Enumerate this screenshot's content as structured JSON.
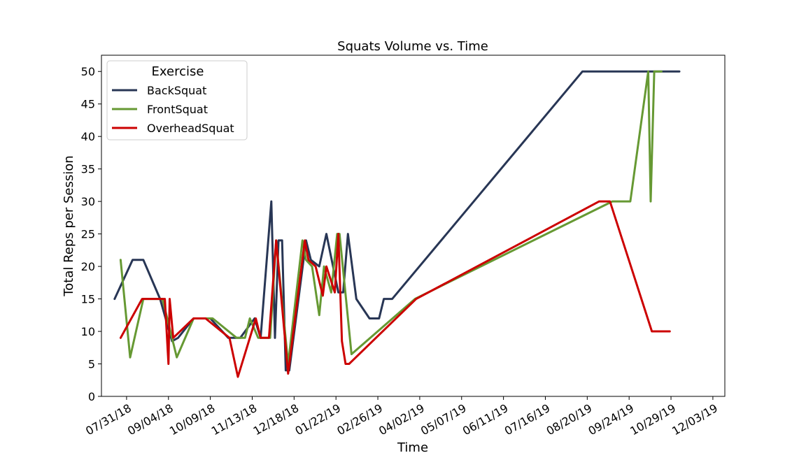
{
  "chart_data": {
    "type": "line",
    "title": "Squats Volume vs. Time",
    "xlabel": "Time",
    "ylabel": "Total Reps per Session",
    "x_tick_labels": [
      "07/31/18",
      "09/04/18",
      "10/09/18",
      "11/13/18",
      "12/18/18",
      "01/22/19",
      "02/26/19",
      "04/02/19",
      "05/07/19",
      "06/11/19",
      "07/16/19",
      "08/20/19",
      "09/24/19",
      "10/29/19",
      "12/03/19"
    ],
    "y_ticks": [
      0,
      5,
      10,
      15,
      20,
      25,
      30,
      35,
      40,
      45,
      50
    ],
    "xlim": [
      "2018-07-10",
      "2019-12-13"
    ],
    "ylim": [
      0,
      52.5
    ],
    "grid": false,
    "legend": {
      "title": "Exercise",
      "position": "top-left"
    },
    "series": [
      {
        "name": "BackSquat",
        "color": "#283655",
        "points": [
          [
            "2018-07-21",
            15
          ],
          [
            "2018-08-05",
            21
          ],
          [
            "2018-08-14",
            21
          ],
          [
            "2018-08-28",
            15
          ],
          [
            "2018-09-07",
            8.5
          ],
          [
            "2018-09-12",
            9
          ],
          [
            "2018-09-25",
            12
          ],
          [
            "2018-10-09",
            12
          ],
          [
            "2018-10-24",
            9
          ],
          [
            "2018-11-03",
            9
          ],
          [
            "2018-11-15",
            12
          ],
          [
            "2018-11-20",
            9
          ],
          [
            "2018-11-29",
            30
          ],
          [
            "2018-12-02",
            9
          ],
          [
            "2018-12-05",
            24
          ],
          [
            "2018-12-08",
            24
          ],
          [
            "2018-12-11",
            4
          ],
          [
            "2018-12-14",
            4
          ],
          [
            "2018-12-28",
            24
          ],
          [
            "2019-01-01",
            21
          ],
          [
            "2019-01-08",
            20
          ],
          [
            "2019-01-14",
            25
          ],
          [
            "2019-01-24",
            16
          ],
          [
            "2019-01-28",
            16
          ],
          [
            "2019-02-01",
            25
          ],
          [
            "2019-02-08",
            15
          ],
          [
            "2019-02-19",
            12
          ],
          [
            "2019-02-27",
            12
          ],
          [
            "2019-03-03",
            15
          ],
          [
            "2019-03-10",
            15
          ],
          [
            "2019-08-16",
            50
          ],
          [
            "2019-11-05",
            50
          ]
        ]
      },
      {
        "name": "FrontSquat",
        "color": "#669933",
        "points": [
          [
            "2018-07-26",
            21
          ],
          [
            "2018-08-03",
            6
          ],
          [
            "2018-08-14",
            15
          ],
          [
            "2018-08-30",
            15
          ],
          [
            "2018-09-11",
            6
          ],
          [
            "2018-09-25",
            12
          ],
          [
            "2018-10-11",
            12
          ],
          [
            "2018-10-31",
            9
          ],
          [
            "2018-11-07",
            9
          ],
          [
            "2018-11-11",
            12
          ],
          [
            "2018-11-18",
            9
          ],
          [
            "2018-11-28",
            9
          ],
          [
            "2018-12-03",
            24
          ],
          [
            "2018-12-13",
            5
          ],
          [
            "2018-12-25",
            24
          ],
          [
            "2018-12-28",
            21
          ],
          [
            "2019-01-02",
            20
          ],
          [
            "2019-01-08",
            12.5
          ],
          [
            "2019-01-12",
            20
          ],
          [
            "2019-01-18",
            16
          ],
          [
            "2019-01-23",
            25
          ],
          [
            "2019-01-25",
            25
          ],
          [
            "2019-02-04",
            6.5
          ],
          [
            "2019-03-29",
            15
          ],
          [
            "2019-09-10",
            30
          ],
          [
            "2019-09-25",
            30
          ],
          [
            "2019-10-10",
            50
          ],
          [
            "2019-10-12",
            30
          ],
          [
            "2019-10-15",
            50
          ],
          [
            "2019-10-21",
            50
          ]
        ]
      },
      {
        "name": "OverheadSquat",
        "color": "#cc0000",
        "points": [
          [
            "2018-07-26",
            9
          ],
          [
            "2018-08-13",
            15
          ],
          [
            "2018-09-01",
            15
          ],
          [
            "2018-09-04",
            5
          ],
          [
            "2018-09-05",
            15
          ],
          [
            "2018-09-08",
            9
          ],
          [
            "2018-09-25",
            12
          ],
          [
            "2018-10-05",
            12
          ],
          [
            "2018-10-25",
            9
          ],
          [
            "2018-11-01",
            3
          ],
          [
            "2018-11-16",
            12
          ],
          [
            "2018-11-20",
            9
          ],
          [
            "2018-11-27",
            9
          ],
          [
            "2018-12-03",
            24
          ],
          [
            "2018-12-13",
            3.5
          ],
          [
            "2018-12-27",
            24
          ],
          [
            "2018-12-30",
            21
          ],
          [
            "2019-01-05",
            20
          ],
          [
            "2019-01-11",
            15.5
          ],
          [
            "2019-01-14",
            20
          ],
          [
            "2019-01-21",
            16
          ],
          [
            "2019-01-24",
            25
          ],
          [
            "2019-01-27",
            8.5
          ],
          [
            "2019-01-30",
            5
          ],
          [
            "2019-02-02",
            5
          ],
          [
            "2019-03-30",
            15
          ],
          [
            "2019-08-30",
            30
          ],
          [
            "2019-09-08",
            30
          ],
          [
            "2019-10-13",
            10
          ],
          [
            "2019-10-28",
            10
          ]
        ]
      }
    ]
  }
}
